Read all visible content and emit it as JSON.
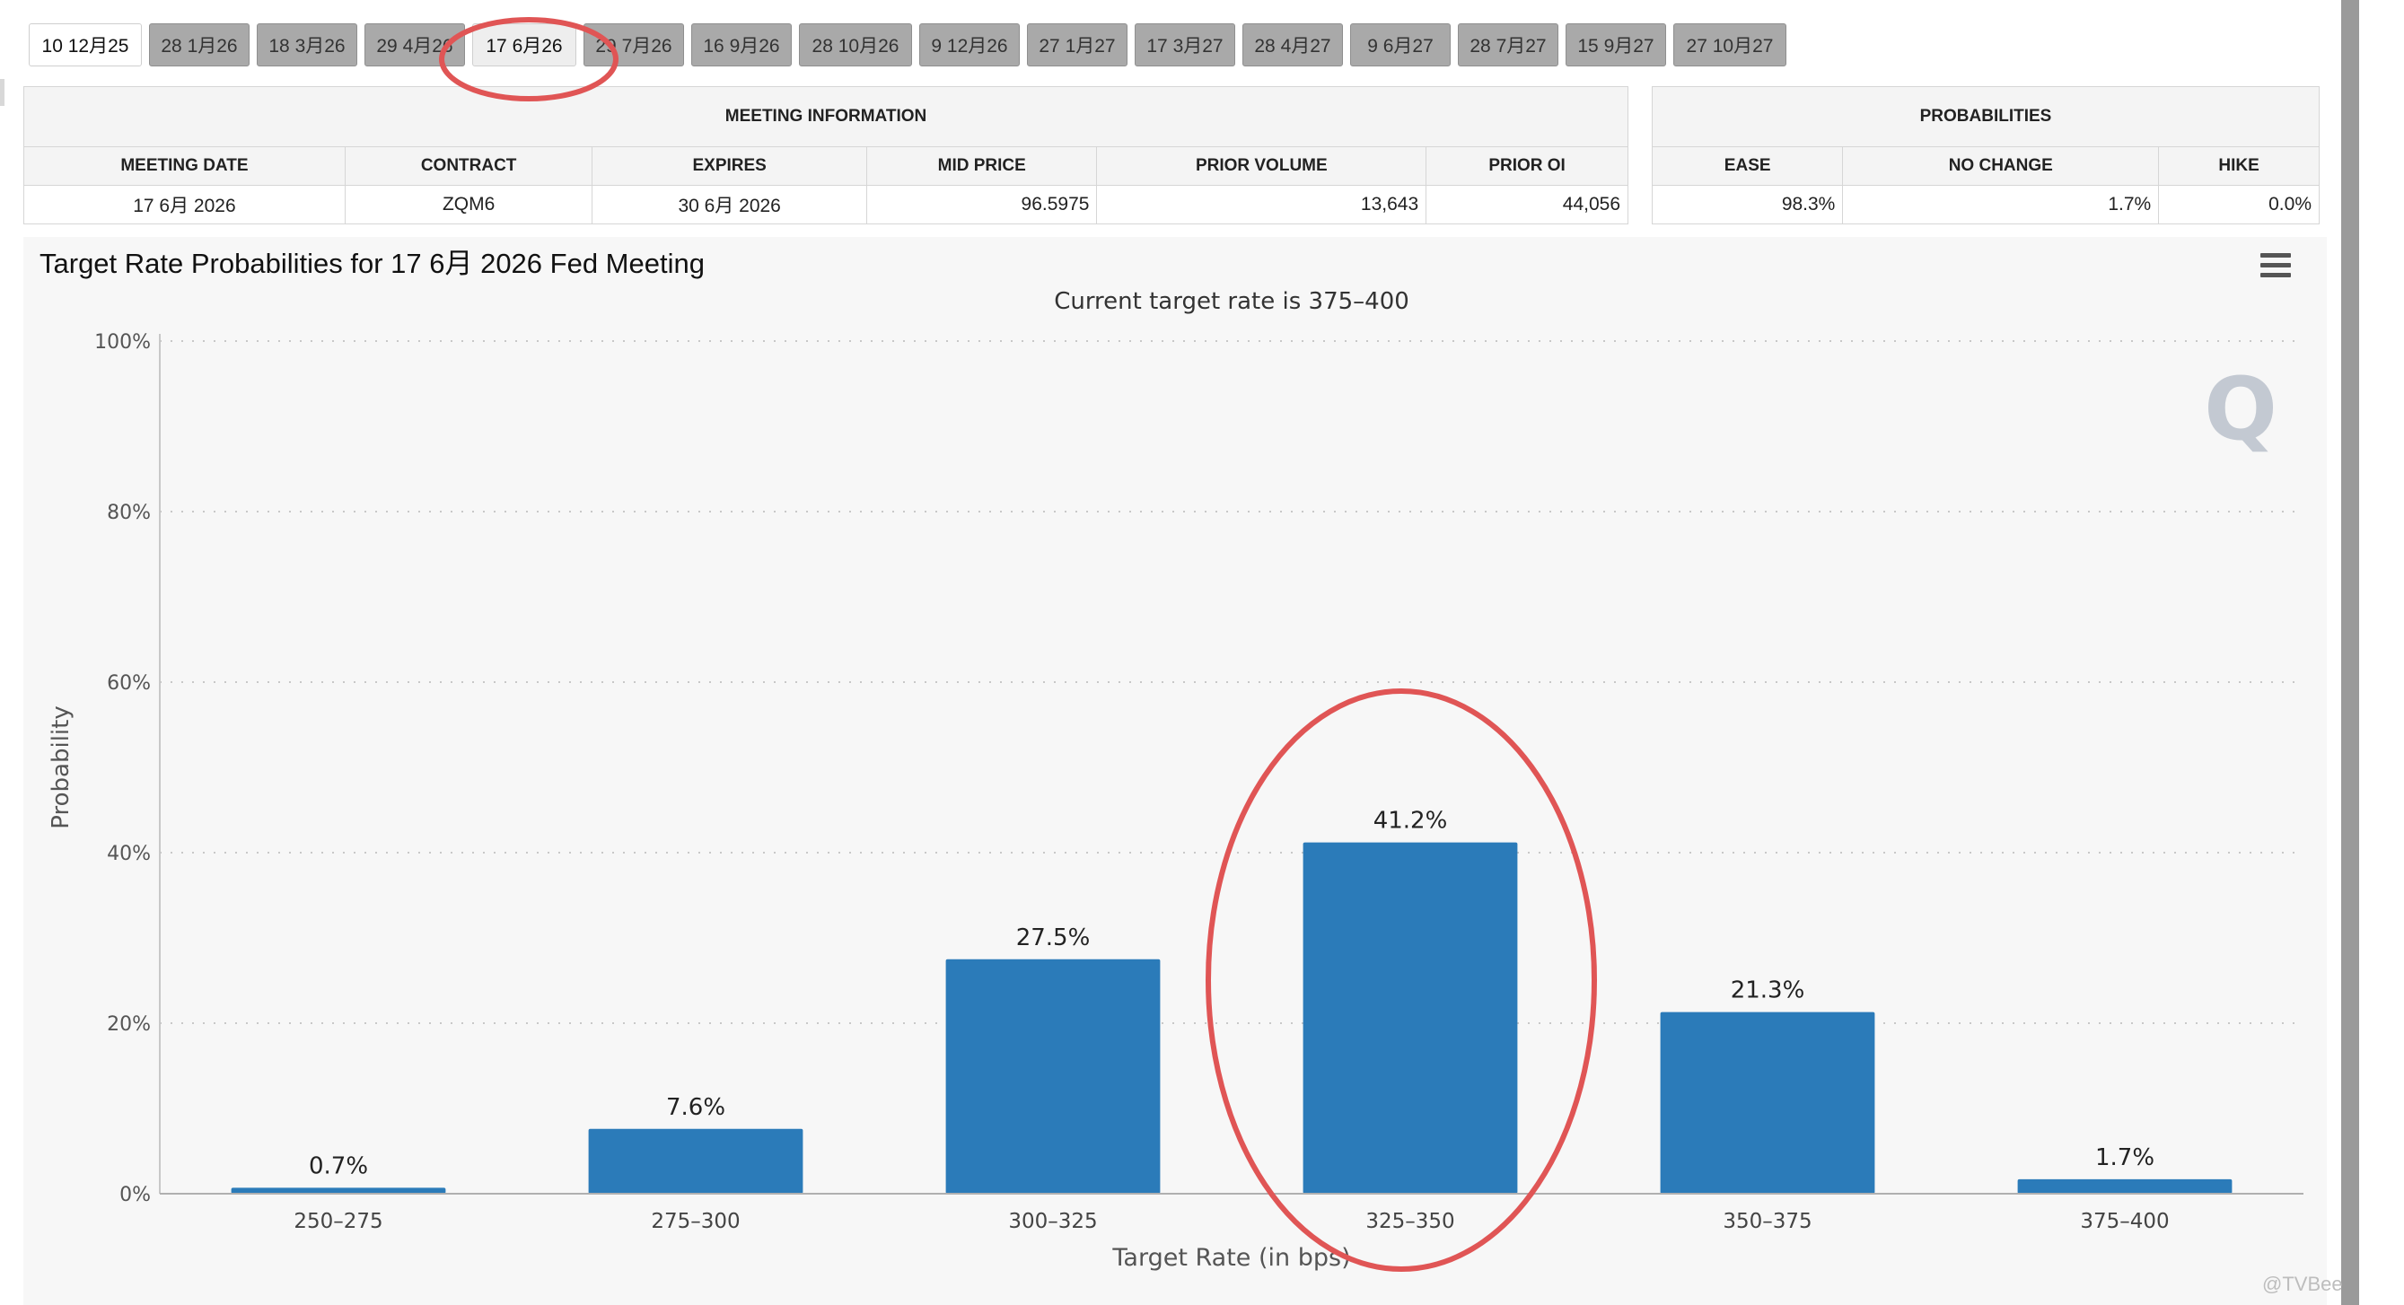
{
  "tabs": [
    {
      "label": "10 12月25",
      "state": "active"
    },
    {
      "label": "28 1月26"
    },
    {
      "label": "18 3月26"
    },
    {
      "label": "29 4月26"
    },
    {
      "label": "17 6月26",
      "state": "current"
    },
    {
      "label": "29 7月26"
    },
    {
      "label": "16 9月26"
    },
    {
      "label": "28 10月26"
    },
    {
      "label": "9 12月26"
    },
    {
      "label": "27 1月27"
    },
    {
      "label": "17 3月27"
    },
    {
      "label": "28 4月27"
    },
    {
      "label": "9 6月27"
    },
    {
      "label": "28 7月27"
    },
    {
      "label": "15 9月27"
    },
    {
      "label": "27 10月27"
    }
  ],
  "meeting_info": {
    "heading": "MEETING INFORMATION",
    "headers": [
      "MEETING DATE",
      "CONTRACT",
      "EXPIRES",
      "MID PRICE",
      "PRIOR VOLUME",
      "PRIOR OI"
    ],
    "values": [
      "17 6月 2026",
      "ZQM6",
      "30 6月 2026",
      "96.5975",
      "13,643",
      "44,056"
    ]
  },
  "probabilities": {
    "heading": "PROBABILITIES",
    "headers": [
      "EASE",
      "NO CHANGE",
      "HIKE"
    ],
    "values": [
      "98.3%",
      "1.7%",
      "0.0%"
    ]
  },
  "chart_title": "Target Rate Probabilities for 17 6月 2026 Fed Meeting",
  "colors": {
    "bar": "#2b7bb9",
    "annotation": "#e05555",
    "grid": "#c8c8c8"
  },
  "chart_data": {
    "type": "bar",
    "subtitle": "Current target rate is 375–400",
    "xlabel": "Target Rate (in bps)",
    "ylabel": "Probability",
    "categories": [
      "250–275",
      "275–300",
      "300–325",
      "325–350",
      "350–375",
      "375–400"
    ],
    "values": [
      0.7,
      7.6,
      27.5,
      41.2,
      21.3,
      1.7
    ],
    "data_labels": [
      "0.7%",
      "7.6%",
      "27.5%",
      "41.2%",
      "21.3%",
      "1.7%"
    ],
    "ylim": [
      0,
      100
    ],
    "yticks": [
      0,
      20,
      40,
      60,
      80,
      100
    ],
    "ytick_labels": [
      "0%",
      "20%",
      "40%",
      "60%",
      "80%",
      "100%"
    ],
    "grid": true,
    "highlight_category": "325–350"
  },
  "watermark": "@TVBee"
}
